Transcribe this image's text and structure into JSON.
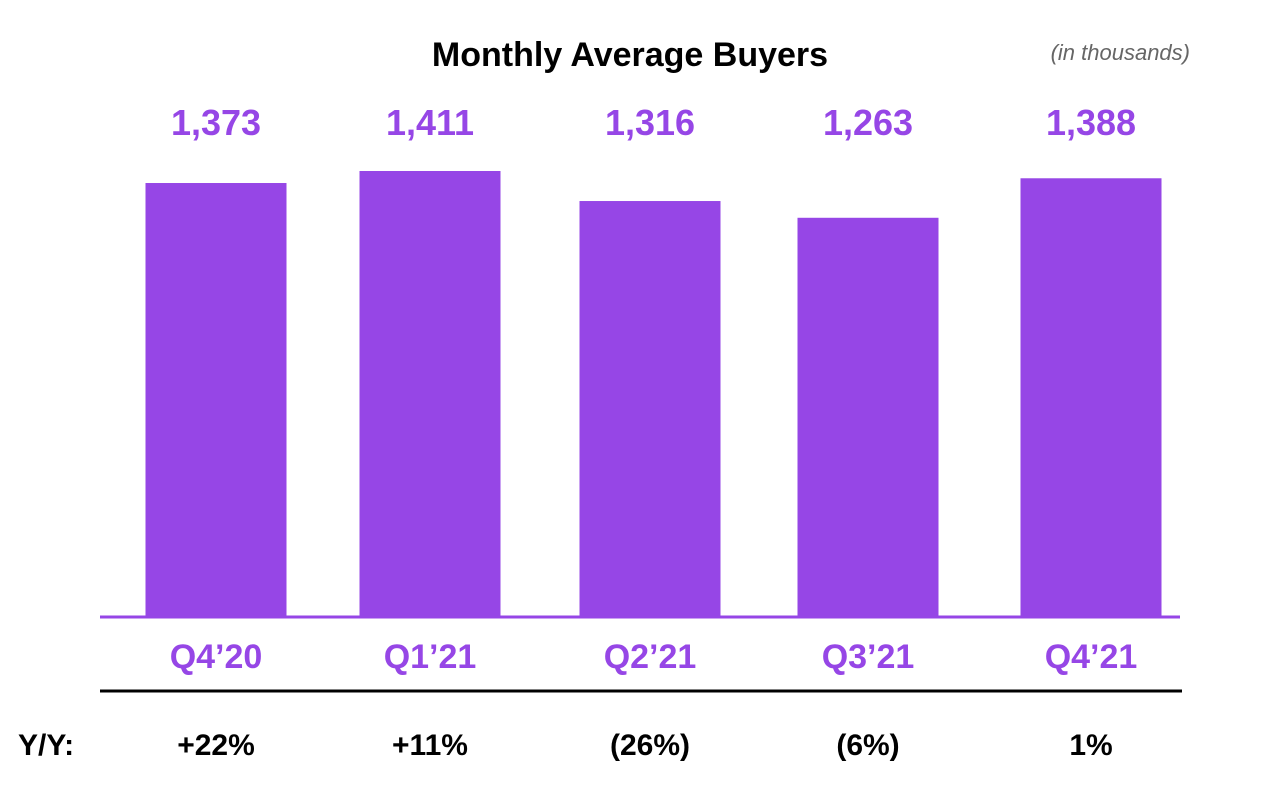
{
  "chart_data": {
    "type": "bar",
    "title": "Monthly Average Buyers",
    "subtitle": "(in thousands)",
    "categories": [
      "Q4’20",
      "Q1’21",
      "Q2’21",
      "Q3’21",
      "Q4’21"
    ],
    "values": [
      1373,
      1411,
      1316,
      1263,
      1388
    ],
    "value_labels": [
      "1,373",
      "1,411",
      "1,316",
      "1,263",
      "1,388"
    ],
    "ylim": [
      0,
      1411
    ],
    "grid": false,
    "legend": "none",
    "yoy": {
      "label": "Y/Y:",
      "values": [
        "+22%",
        "+11%",
        "(26%)",
        "(6%)",
        "1%"
      ]
    },
    "colors": {
      "bar": "#9646E6",
      "axis": "#9646E6",
      "category_label": "#9646E6",
      "value_label": "#9646E6",
      "title": "#000000",
      "subtitle": "#666666",
      "yoy_text": "#000000",
      "divider": "#000000"
    }
  }
}
